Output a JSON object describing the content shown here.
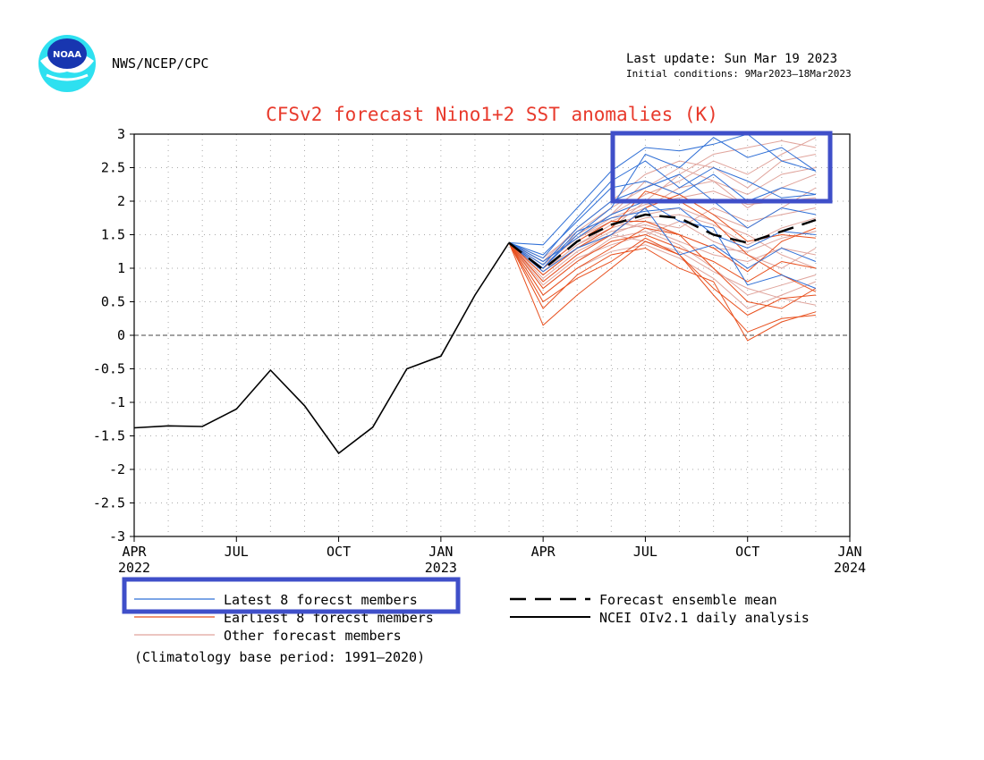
{
  "header": {
    "logo_text": "NOAA",
    "org": "NWS/NCEP/CPC",
    "last_update": "Last update: Sun Mar 19 2023",
    "initial_conditions": "Initial conditions: 9Mar2023–18Mar2023"
  },
  "colors": {
    "title": "#e83a2c",
    "latest": "#2f6fd6",
    "earliest": "#e8501e",
    "other": "#e0a49c",
    "observed": "#000000",
    "highlight_box": "#3f4fc9",
    "logo_outer": "#2ee0f0",
    "logo_inner": "#1836b0"
  },
  "chart_data": {
    "type": "line",
    "title": "CFSv2 forecast Nino1+2 SST anomalies (K)",
    "xlabel": "",
    "ylabel": "",
    "ylim": [
      -3,
      3
    ],
    "xlim": [
      "2022-04",
      "2024-01"
    ],
    "x_ticks": [
      {
        "month": "2022-04",
        "label": "APR",
        "year_label": "2022"
      },
      {
        "month": "2022-07",
        "label": "JUL",
        "year_label": ""
      },
      {
        "month": "2022-10",
        "label": "OCT",
        "year_label": ""
      },
      {
        "month": "2023-01",
        "label": "JAN",
        "year_label": "2023"
      },
      {
        "month": "2023-04",
        "label": "APR",
        "year_label": ""
      },
      {
        "month": "2023-07",
        "label": "JUL",
        "year_label": ""
      },
      {
        "month": "2023-10",
        "label": "OCT",
        "year_label": ""
      },
      {
        "month": "2024-01",
        "label": "JAN",
        "year_label": "2024"
      }
    ],
    "y_ticks": [
      "3",
      "2.5",
      "2",
      "1.5",
      "1",
      "0.5",
      "0",
      "-0.5",
      "-1",
      "-1.5",
      "-2",
      "-2.5",
      "-3"
    ],
    "grid": true,
    "zero_line": true,
    "observed": {
      "name": "NCEI OIv2.1 daily analysis",
      "x": [
        "2022-04",
        "2022-05",
        "2022-06",
        "2022-07",
        "2022-08",
        "2022-09",
        "2022-10",
        "2022-11",
        "2022-12",
        "2023-01",
        "2023-02",
        "2023-03"
      ],
      "values": [
        -1.38,
        -1.35,
        -1.36,
        -1.1,
        -0.52,
        -1.05,
        -1.76,
        -1.37,
        -0.5,
        -0.31,
        0.6,
        1.38
      ]
    },
    "forecast_x": [
      "2023-03",
      "2023-04",
      "2023-05",
      "2023-06",
      "2023-07",
      "2023-08",
      "2023-09",
      "2023-10",
      "2023-11",
      "2023-12"
    ],
    "ensemble_mean": {
      "name": "Forecast ensemble mean",
      "values": [
        1.38,
        0.98,
        1.4,
        1.65,
        1.8,
        1.75,
        1.5,
        1.38,
        1.55,
        1.72
      ]
    },
    "series": [
      {
        "group": "latest",
        "values": [
          1.38,
          1.35,
          1.9,
          2.45,
          2.8,
          2.75,
          2.85,
          3.0,
          2.6,
          2.45
        ]
      },
      {
        "group": "latest",
        "values": [
          1.38,
          1.2,
          1.7,
          2.2,
          2.3,
          2.1,
          2.4,
          2.0,
          2.2,
          2.1
        ]
      },
      {
        "group": "latest",
        "values": [
          1.38,
          1.0,
          1.5,
          1.9,
          2.7,
          2.5,
          2.95,
          2.65,
          2.8,
          2.45
        ]
      },
      {
        "group": "latest",
        "values": [
          1.38,
          1.1,
          1.45,
          1.8,
          2.0,
          1.7,
          1.6,
          0.75,
          0.9,
          0.7
        ]
      },
      {
        "group": "latest",
        "values": [
          1.38,
          0.95,
          1.3,
          1.5,
          1.9,
          1.2,
          1.35,
          1.0,
          1.3,
          1.1
        ]
      },
      {
        "group": "latest",
        "values": [
          1.38,
          1.05,
          1.6,
          2.0,
          2.2,
          2.4,
          2.0,
          1.6,
          1.9,
          1.8
        ]
      },
      {
        "group": "latest",
        "values": [
          1.38,
          1.15,
          1.75,
          2.3,
          2.6,
          2.2,
          2.5,
          2.3,
          2.05,
          2.1
        ]
      },
      {
        "group": "latest",
        "values": [
          1.38,
          1.0,
          1.55,
          1.75,
          1.85,
          1.9,
          1.5,
          1.3,
          1.55,
          1.5
        ]
      },
      {
        "group": "earliest",
        "values": [
          1.38,
          0.15,
          0.6,
          1.0,
          1.4,
          1.2,
          0.6,
          0.05,
          0.25,
          0.3
        ]
      },
      {
        "group": "earliest",
        "values": [
          1.38,
          0.6,
          1.0,
          1.3,
          1.6,
          1.5,
          1.0,
          0.5,
          0.4,
          0.7
        ]
      },
      {
        "group": "earliest",
        "values": [
          1.38,
          0.8,
          1.2,
          1.5,
          1.9,
          2.1,
          1.8,
          1.4,
          1.5,
          1.45
        ]
      },
      {
        "group": "earliest",
        "values": [
          1.38,
          0.4,
          0.9,
          1.2,
          1.3,
          1.0,
          0.8,
          -0.08,
          0.2,
          0.35
        ]
      },
      {
        "group": "earliest",
        "values": [
          1.38,
          0.9,
          1.3,
          1.6,
          2.15,
          2.0,
          1.7,
          1.2,
          0.9,
          0.65
        ]
      },
      {
        "group": "earliest",
        "values": [
          1.38,
          0.7,
          1.1,
          1.4,
          1.5,
          1.3,
          1.1,
          0.8,
          1.1,
          1.0
        ]
      },
      {
        "group": "earliest",
        "values": [
          1.38,
          1.0,
          1.4,
          1.7,
          1.7,
          1.5,
          1.3,
          0.95,
          1.4,
          1.6
        ]
      },
      {
        "group": "earliest",
        "values": [
          1.38,
          0.5,
          0.85,
          1.1,
          1.45,
          1.2,
          0.7,
          0.3,
          0.55,
          0.6
        ]
      },
      {
        "group": "other",
        "values": [
          1.38,
          1.1,
          1.5,
          1.8,
          2.1,
          2.3,
          2.6,
          2.4,
          2.7,
          2.95
        ]
      },
      {
        "group": "other",
        "values": [
          1.38,
          0.9,
          1.3,
          1.6,
          2.0,
          2.4,
          2.7,
          2.8,
          2.9,
          2.8
        ]
      },
      {
        "group": "other",
        "values": [
          1.38,
          1.0,
          1.4,
          1.7,
          1.9,
          2.2,
          2.3,
          2.1,
          2.4,
          2.5
        ]
      },
      {
        "group": "other",
        "values": [
          1.38,
          0.8,
          1.2,
          1.5,
          1.7,
          1.6,
          1.9,
          1.7,
          1.8,
          1.9
        ]
      },
      {
        "group": "other",
        "values": [
          1.38,
          1.05,
          1.45,
          1.7,
          1.6,
          1.4,
          1.2,
          1.1,
          1.3,
          1.2
        ]
      },
      {
        "group": "other",
        "values": [
          1.38,
          0.95,
          1.35,
          1.65,
          1.8,
          1.9,
          1.7,
          1.5,
          1.2,
          1.0
        ]
      },
      {
        "group": "other",
        "values": [
          1.38,
          0.7,
          1.1,
          1.45,
          1.55,
          1.35,
          1.0,
          0.6,
          0.75,
          0.9
        ]
      },
      {
        "group": "other",
        "values": [
          1.38,
          1.15,
          1.55,
          1.9,
          2.2,
          2.5,
          2.3,
          1.9,
          2.2,
          2.4
        ]
      },
      {
        "group": "other",
        "values": [
          1.38,
          0.85,
          1.25,
          1.5,
          1.4,
          1.25,
          0.95,
          0.7,
          0.55,
          0.45
        ]
      },
      {
        "group": "other",
        "values": [
          1.38,
          1.0,
          1.5,
          1.8,
          2.3,
          2.1,
          1.8,
          1.6,
          1.9,
          2.2
        ]
      },
      {
        "group": "other",
        "values": [
          1.38,
          0.75,
          1.15,
          1.35,
          1.5,
          1.7,
          1.4,
          1.2,
          1.0,
          1.3
        ]
      },
      {
        "group": "other",
        "values": [
          1.38,
          1.1,
          1.6,
          2.0,
          2.4,
          2.6,
          2.5,
          2.2,
          2.6,
          2.7
        ]
      },
      {
        "group": "other",
        "values": [
          1.38,
          0.9,
          1.3,
          1.55,
          1.65,
          1.5,
          1.3,
          1.25,
          1.45,
          1.55
        ]
      },
      {
        "group": "other",
        "values": [
          1.38,
          0.6,
          1.0,
          1.25,
          1.35,
          1.15,
          0.85,
          0.4,
          0.6,
          0.8
        ]
      },
      {
        "group": "other",
        "values": [
          1.38,
          1.05,
          1.45,
          1.75,
          1.95,
          2.05,
          2.15,
          1.95,
          2.0,
          2.05
        ]
      },
      {
        "group": "other",
        "values": [
          1.38,
          0.95,
          1.35,
          1.6,
          1.75,
          1.8,
          1.65,
          1.35,
          1.6,
          1.75
        ]
      }
    ],
    "legend": {
      "latest": "Latest 8 forecst members",
      "earliest": "Earliest 8 forecst members",
      "other": "Other forecast members",
      "mean": "Forecast ensemble mean",
      "observed": "NCEI OIv2.1 daily analysis"
    },
    "climatology_note": "(Climatology base period: 1991–2020)"
  }
}
